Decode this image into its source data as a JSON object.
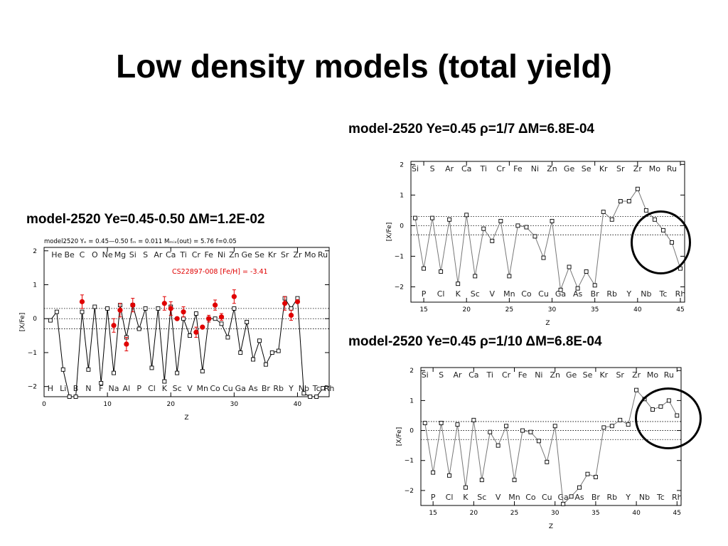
{
  "slide": {
    "title": "Low density models (total yield)"
  },
  "captions": {
    "right_top": "model-2520  Ye=0.45 ρ=1/7  ΔM=6.8E-04",
    "left": "model-2520  Ye=0.45-0.50   ΔM=1.2E-02",
    "right_bottom": "model-2520  Ye=0.45 ρ=1/10  ΔM=6.8E-04"
  },
  "chart_data": [
    {
      "id": "chart-right-top",
      "type": "line",
      "xlabel": "Z",
      "ylabel": "[X/Fe]",
      "xlim": [
        13.5,
        45.5
      ],
      "ylim": [
        -2.5,
        2.1
      ],
      "xticks": [
        15,
        20,
        25,
        30,
        35,
        40,
        45
      ],
      "yticks": [
        -2,
        -1,
        0,
        1,
        2
      ],
      "hlines": [
        0.3,
        0,
        -0.3
      ],
      "top_elements": [
        [
          14,
          "Si"
        ],
        [
          16,
          "S"
        ],
        [
          18,
          "Ar"
        ],
        [
          20,
          "Ca"
        ],
        [
          22,
          "Ti"
        ],
        [
          24,
          "Cr"
        ],
        [
          26,
          "Fe"
        ],
        [
          28,
          "Ni"
        ],
        [
          30,
          "Zn"
        ],
        [
          32,
          "Ge"
        ],
        [
          34,
          "Se"
        ],
        [
          36,
          "Kr"
        ],
        [
          38,
          "Sr"
        ],
        [
          40,
          "Zr"
        ],
        [
          42,
          "Mo"
        ],
        [
          44,
          "Ru"
        ]
      ],
      "bottom_elements": [
        [
          15,
          "P"
        ],
        [
          17,
          "Cl"
        ],
        [
          19,
          "K"
        ],
        [
          21,
          "Sc"
        ],
        [
          23,
          "V"
        ],
        [
          25,
          "Mn"
        ],
        [
          27,
          "Co"
        ],
        [
          29,
          "Cu"
        ],
        [
          31,
          "Ga"
        ],
        [
          33,
          "As"
        ],
        [
          35,
          "Br"
        ],
        [
          37,
          "Rb"
        ],
        [
          39,
          "Y"
        ],
        [
          41,
          "Nb"
        ],
        [
          43,
          "Tc"
        ],
        [
          45,
          "Rh"
        ]
      ],
      "series": [
        {
          "x": [
            14,
            15,
            16,
            17,
            18,
            19,
            20,
            21,
            22,
            23,
            24,
            25,
            26,
            27,
            28,
            29,
            30,
            31,
            32,
            33,
            34,
            35,
            36,
            37,
            38,
            39,
            40,
            41,
            42,
            43,
            44,
            45
          ],
          "y": [
            0.25,
            -1.4,
            0.25,
            -1.5,
            0.2,
            -1.9,
            0.35,
            -1.65,
            -0.1,
            -0.5,
            0.15,
            -1.65,
            0.0,
            -0.05,
            -0.35,
            -1.05,
            0.15,
            -2.1,
            -1.35,
            -2.05,
            -1.5,
            -1.95,
            0.45,
            0.2,
            0.8,
            0.8,
            1.2,
            0.5,
            0.2,
            -0.15,
            -0.55,
            -1.4
          ]
        }
      ]
    },
    {
      "id": "chart-left",
      "type": "line",
      "xlabel": "Z",
      "ylabel": "[X/Fe]",
      "xlim": [
        0,
        45
      ],
      "ylim": [
        -2.3,
        2.1
      ],
      "xticks": [
        0,
        10,
        20,
        30,
        40
      ],
      "yticks": [
        -2,
        -1,
        0,
        1,
        2
      ],
      "hlines": [
        0.3,
        0,
        -0.3
      ],
      "header": "model2520  Yₑ = 0.45—0.50   fₘ = 0.011  Mₘᵢₓ(out) = 5.76  f=0.05",
      "legend": "CS22897-008  [Fe/H] = -3.41",
      "top_elements": [
        [
          2,
          "He"
        ],
        [
          4,
          "Be"
        ],
        [
          6,
          "C"
        ],
        [
          8,
          "O"
        ],
        [
          10,
          "Ne"
        ],
        [
          12,
          "Mg"
        ],
        [
          14,
          "Si"
        ],
        [
          16,
          "S"
        ],
        [
          18,
          "Ar"
        ],
        [
          20,
          "Ca"
        ],
        [
          22,
          "Ti"
        ],
        [
          24,
          "Cr"
        ],
        [
          26,
          "Fe"
        ],
        [
          28,
          "Ni"
        ],
        [
          30,
          "Zn"
        ],
        [
          32,
          "Ge"
        ],
        [
          34,
          "Se"
        ],
        [
          36,
          "Kr"
        ],
        [
          38,
          "Sr"
        ],
        [
          40,
          "Zr"
        ],
        [
          42,
          "Mo"
        ],
        [
          44,
          "Ru"
        ]
      ],
      "bottom_elements": [
        [
          1,
          "H"
        ],
        [
          3,
          "Li"
        ],
        [
          5,
          "B"
        ],
        [
          7,
          "N"
        ],
        [
          9,
          "F"
        ],
        [
          11,
          "Na"
        ],
        [
          13,
          "Al"
        ],
        [
          15,
          "P"
        ],
        [
          17,
          "Cl"
        ],
        [
          19,
          "K"
        ],
        [
          21,
          "Sc"
        ],
        [
          23,
          "V"
        ],
        [
          25,
          "Mn"
        ],
        [
          27,
          "Co"
        ],
        [
          29,
          "Cu"
        ],
        [
          31,
          "Ga"
        ],
        [
          33,
          "As"
        ],
        [
          35,
          "Br"
        ],
        [
          37,
          "Rb"
        ],
        [
          39,
          "Y"
        ],
        [
          41,
          "Nb"
        ],
        [
          43,
          "Tc"
        ],
        [
          45,
          "Rh"
        ]
      ],
      "series": [
        {
          "x": [
            1,
            2,
            3,
            4,
            5,
            6,
            7,
            8,
            9,
            10,
            11,
            12,
            13,
            14,
            15,
            16,
            17,
            18,
            19,
            20,
            21,
            22,
            23,
            24,
            25,
            26,
            27,
            28,
            29,
            30,
            31,
            32,
            33,
            34,
            35,
            36,
            37,
            38,
            39,
            40,
            41,
            42,
            43,
            44
          ],
          "y": [
            -0.05,
            0.2,
            -1.5,
            -2.3,
            -2.3,
            0.2,
            -1.5,
            0.35,
            -1.9,
            0.3,
            -1.6,
            0.4,
            -0.55,
            0.4,
            -0.3,
            0.3,
            -1.45,
            0.3,
            -1.85,
            0.35,
            -1.6,
            0.0,
            -0.5,
            0.15,
            -1.55,
            0.0,
            0.0,
            -0.15,
            -0.55,
            0.3,
            -1.0,
            -0.1,
            -1.2,
            -0.65,
            -1.35,
            -1.0,
            -0.95,
            0.6,
            0.3,
            0.6,
            -2.2,
            -2.3,
            -2.3,
            -2.05
          ]
        }
      ],
      "observed": {
        "name": "CS22897-008",
        "x": [
          6,
          11,
          12,
          13,
          14,
          19,
          20,
          21,
          22,
          24,
          25,
          26,
          27,
          28,
          30,
          38,
          39,
          40
        ],
        "y": [
          0.5,
          -0.2,
          0.25,
          -0.75,
          0.4,
          0.45,
          0.3,
          0.0,
          0.2,
          -0.4,
          -0.25,
          0.0,
          0.4,
          0.05,
          0.65,
          0.45,
          0.1,
          0.5
        ],
        "err": [
          0.2,
          0.2,
          0.2,
          0.2,
          0.2,
          0.2,
          0.2,
          0.0,
          0.15,
          0.15,
          0.0,
          0.1,
          0.15,
          0.1,
          0.2,
          0.2,
          0.15,
          0.0
        ]
      }
    },
    {
      "id": "chart-right-bottom",
      "type": "line",
      "xlabel": "Z",
      "ylabel": "[X/Fe]",
      "xlim": [
        13.5,
        45.5
      ],
      "ylim": [
        -2.5,
        2.1
      ],
      "xticks": [
        15,
        20,
        25,
        30,
        35,
        40,
        45
      ],
      "yticks": [
        -2,
        -1,
        0,
        1,
        2
      ],
      "hlines": [
        0.3,
        0,
        -0.3
      ],
      "top_elements": [
        [
          14,
          "Si"
        ],
        [
          16,
          "S"
        ],
        [
          18,
          "Ar"
        ],
        [
          20,
          "Ca"
        ],
        [
          22,
          "Ti"
        ],
        [
          24,
          "Cr"
        ],
        [
          26,
          "Fe"
        ],
        [
          28,
          "Ni"
        ],
        [
          30,
          "Zn"
        ],
        [
          32,
          "Ge"
        ],
        [
          34,
          "Se"
        ],
        [
          36,
          "Kr"
        ],
        [
          38,
          "Sr"
        ],
        [
          40,
          "Zr"
        ],
        [
          42,
          "Mo"
        ],
        [
          44,
          "Ru"
        ]
      ],
      "bottom_elements": [
        [
          15,
          "P"
        ],
        [
          17,
          "Cl"
        ],
        [
          19,
          "K"
        ],
        [
          21,
          "Sc"
        ],
        [
          23,
          "V"
        ],
        [
          25,
          "Mn"
        ],
        [
          27,
          "Co"
        ],
        [
          29,
          "Cu"
        ],
        [
          31,
          "Ga"
        ],
        [
          33,
          "As"
        ],
        [
          35,
          "Br"
        ],
        [
          37,
          "Rb"
        ],
        [
          39,
          "Y"
        ],
        [
          41,
          "Nb"
        ],
        [
          43,
          "Tc"
        ],
        [
          45,
          "Rh"
        ]
      ],
      "series": [
        {
          "x": [
            14,
            15,
            16,
            17,
            18,
            19,
            20,
            21,
            22,
            23,
            24,
            25,
            26,
            27,
            28,
            29,
            30,
            31,
            32,
            33,
            34,
            35,
            36,
            37,
            38,
            39,
            40,
            41,
            42,
            43,
            44,
            45
          ],
          "y": [
            0.25,
            -1.4,
            0.25,
            -1.5,
            0.2,
            -1.9,
            0.35,
            -1.65,
            -0.05,
            -0.5,
            0.15,
            -1.65,
            0.0,
            -0.05,
            -0.35,
            -1.05,
            0.15,
            -2.45,
            -2.2,
            -1.9,
            -1.45,
            -1.55,
            0.1,
            0.15,
            0.35,
            0.2,
            1.35,
            1.05,
            0.7,
            0.8,
            1.0,
            0.5
          ]
        }
      ]
    }
  ]
}
